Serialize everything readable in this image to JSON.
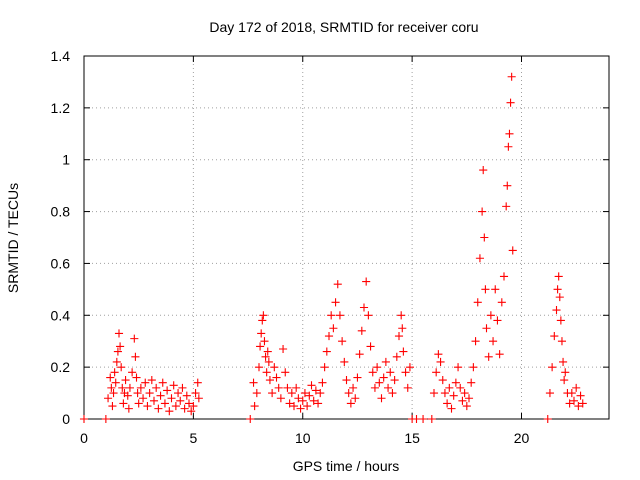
{
  "chart_data": {
    "type": "scatter",
    "title": "Day 172 of 2018, SRMTID for receiver coru",
    "xlabel": "GPS time / hours",
    "ylabel": "SRMTID / TECUs",
    "xlim": [
      0,
      24
    ],
    "ylim": [
      0,
      1.4
    ],
    "xticks": [
      0,
      5,
      10,
      15,
      20
    ],
    "yticks": [
      0,
      0.2,
      0.4,
      0.6,
      0.8,
      1,
      1.2,
      1.4
    ],
    "grid": true,
    "marker": "+",
    "color": "#ff0000",
    "series": [
      {
        "name": "SRMTID",
        "x": [
          0.0,
          1.0,
          1.1,
          1.2,
          1.25,
          1.3,
          1.35,
          1.4,
          1.45,
          1.5,
          1.55,
          1.6,
          1.65,
          1.7,
          1.75,
          1.8,
          1.85,
          1.9,
          2.0,
          2.05,
          2.1,
          2.2,
          2.3,
          2.35,
          2.4,
          2.45,
          2.5,
          2.6,
          2.7,
          2.8,
          2.9,
          3.0,
          3.1,
          3.2,
          3.3,
          3.4,
          3.5,
          3.6,
          3.7,
          3.8,
          3.9,
          4.0,
          4.1,
          4.2,
          4.3,
          4.4,
          4.5,
          4.6,
          4.7,
          4.8,
          4.9,
          5.0,
          5.1,
          5.2,
          5.25,
          7.6,
          7.75,
          7.8,
          7.9,
          8.0,
          8.05,
          8.1,
          8.15,
          8.2,
          8.25,
          8.3,
          8.35,
          8.4,
          8.45,
          8.5,
          8.6,
          8.7,
          8.8,
          8.9,
          9.0,
          9.1,
          9.2,
          9.3,
          9.4,
          9.5,
          9.6,
          9.7,
          9.8,
          9.9,
          10.0,
          10.1,
          10.2,
          10.3,
          10.4,
          10.5,
          10.6,
          10.7,
          10.8,
          10.9,
          11.0,
          11.1,
          11.2,
          11.3,
          11.4,
          11.5,
          11.6,
          11.7,
          11.8,
          11.9,
          12.0,
          12.1,
          12.2,
          12.3,
          12.4,
          12.5,
          12.6,
          12.7,
          12.8,
          12.9,
          13.0,
          13.1,
          13.2,
          13.3,
          13.4,
          13.5,
          13.6,
          13.7,
          13.8,
          13.9,
          14.0,
          14.1,
          14.2,
          14.3,
          14.4,
          14.5,
          14.55,
          14.6,
          14.7,
          14.8,
          14.9,
          15.0,
          15.2,
          15.5,
          15.9,
          16.0,
          16.1,
          16.2,
          16.3,
          16.4,
          16.5,
          16.6,
          16.7,
          16.8,
          16.9,
          17.0,
          17.1,
          17.2,
          17.3,
          17.4,
          17.5,
          17.6,
          17.7,
          17.8,
          17.9,
          18.0,
          18.1,
          18.2,
          18.25,
          18.3,
          18.35,
          18.4,
          18.5,
          18.6,
          18.7,
          18.8,
          18.9,
          19.0,
          19.1,
          19.2,
          19.3,
          19.35,
          19.4,
          19.45,
          19.5,
          19.55,
          19.6,
          21.2,
          21.3,
          21.4,
          21.5,
          21.6,
          21.65,
          21.7,
          21.75,
          21.8,
          21.85,
          21.9,
          21.95,
          22.0,
          22.1,
          22.2,
          22.3,
          22.4,
          22.5,
          22.6,
          22.7,
          22.8
        ],
        "y": [
          0.0,
          0.0,
          0.08,
          0.16,
          0.12,
          0.05,
          0.1,
          0.18,
          0.14,
          0.22,
          0.26,
          0.33,
          0.28,
          0.2,
          0.12,
          0.06,
          0.1,
          0.15,
          0.09,
          0.04,
          0.12,
          0.18,
          0.31,
          0.24,
          0.16,
          0.1,
          0.06,
          0.12,
          0.08,
          0.14,
          0.05,
          0.1,
          0.15,
          0.07,
          0.12,
          0.04,
          0.09,
          0.14,
          0.06,
          0.11,
          0.03,
          0.08,
          0.13,
          0.05,
          0.1,
          0.07,
          0.12,
          0.04,
          0.09,
          0.06,
          0.03,
          0.05,
          0.1,
          0.14,
          0.08,
          0.0,
          0.14,
          0.05,
          0.1,
          0.2,
          0.28,
          0.33,
          0.38,
          0.4,
          0.3,
          0.24,
          0.18,
          0.26,
          0.22,
          0.15,
          0.1,
          0.2,
          0.16,
          0.12,
          0.08,
          0.27,
          0.18,
          0.12,
          0.06,
          0.1,
          0.05,
          0.12,
          0.08,
          0.04,
          0.07,
          0.1,
          0.05,
          0.09,
          0.13,
          0.07,
          0.11,
          0.06,
          0.1,
          0.14,
          0.2,
          0.26,
          0.32,
          0.4,
          0.35,
          0.45,
          0.52,
          0.4,
          0.3,
          0.22,
          0.15,
          0.1,
          0.06,
          0.12,
          0.08,
          0.16,
          0.25,
          0.34,
          0.43,
          0.53,
          0.4,
          0.28,
          0.18,
          0.12,
          0.2,
          0.14,
          0.08,
          0.16,
          0.22,
          0.12,
          0.18,
          0.1,
          0.15,
          0.24,
          0.32,
          0.4,
          0.35,
          0.26,
          0.18,
          0.12,
          0.2,
          0.0,
          0.0,
          0.0,
          0.0,
          0.1,
          0.18,
          0.25,
          0.22,
          0.15,
          0.1,
          0.06,
          0.12,
          0.04,
          0.09,
          0.14,
          0.2,
          0.12,
          0.07,
          0.1,
          0.05,
          0.08,
          0.14,
          0.2,
          0.3,
          0.45,
          0.62,
          0.8,
          0.96,
          0.7,
          0.5,
          0.35,
          0.24,
          0.4,
          0.3,
          0.5,
          0.38,
          0.25,
          0.45,
          0.55,
          0.82,
          0.9,
          1.05,
          1.1,
          1.22,
          1.32,
          0.65,
          0.0,
          0.1,
          0.2,
          0.32,
          0.42,
          0.5,
          0.55,
          0.47,
          0.38,
          0.3,
          0.22,
          0.15,
          0.18,
          0.1,
          0.06,
          0.1,
          0.07,
          0.12,
          0.05,
          0.09,
          0.06
        ]
      }
    ]
  }
}
